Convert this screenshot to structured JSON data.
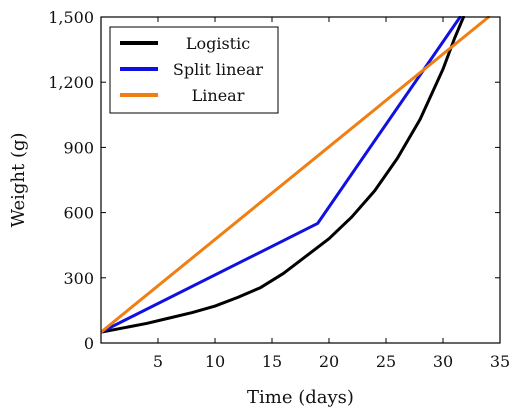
{
  "chart_data": {
    "type": "line",
    "title": "",
    "xlabel": "Time (days)",
    "ylabel": "Weight (g)",
    "xlim": [
      0,
      35
    ],
    "ylim": [
      0,
      1500
    ],
    "x_ticks": [
      5,
      10,
      15,
      20,
      25,
      30,
      35
    ],
    "x_tick_labels": [
      "5",
      "10",
      "15",
      "20",
      "25",
      "30",
      "35"
    ],
    "y_ticks": [
      0,
      300,
      600,
      900,
      1200,
      1500
    ],
    "y_tick_labels": [
      "0",
      "300",
      "600",
      "900",
      "1,200",
      "1,500"
    ],
    "grid": false,
    "legend_position": "top-left",
    "series": [
      {
        "name": "Logistic",
        "color": "#000000",
        "x": [
          0,
          2,
          4,
          6,
          8,
          10,
          12,
          14,
          16,
          18,
          20,
          22,
          24,
          26,
          28,
          30,
          31,
          31.8
        ],
        "y": [
          50,
          70,
          90,
          115,
          140,
          170,
          210,
          255,
          320,
          400,
          480,
          580,
          700,
          850,
          1030,
          1260,
          1400,
          1500
        ]
      },
      {
        "name": "Split linear",
        "color": "#1010e0",
        "x": [
          0,
          19,
          31.5
        ],
        "y": [
          50,
          550,
          1500
        ]
      },
      {
        "name": "Linear",
        "color": "#f07f13",
        "x": [
          0,
          34
        ],
        "y": [
          50,
          1500
        ]
      }
    ]
  }
}
